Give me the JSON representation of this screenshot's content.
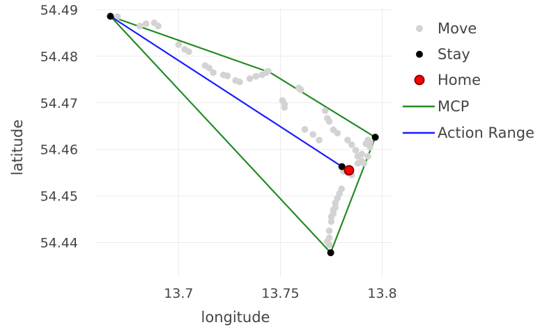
{
  "chart_data": {
    "type": "scatter",
    "xlabel": "longitude",
    "ylabel": "latitude",
    "xlim": [
      13.6595,
      13.8046
    ],
    "ylim": [
      54.4326,
      54.4903
    ],
    "x_ticks": [
      13.7,
      13.75,
      13.8
    ],
    "x_tick_labels": [
      "13.7",
      "13.75",
      "13.8"
    ],
    "y_ticks": [
      54.44,
      54.45,
      54.46,
      54.47,
      54.48,
      54.49
    ],
    "y_tick_labels": [
      "54.44",
      "54.45",
      "54.46",
      "54.47",
      "54.48",
      "54.49"
    ],
    "grid": true,
    "legend_position": "right",
    "colors": {
      "move": "#d3d3d3",
      "stay": "#000000",
      "home_fill": "#ff0000",
      "home_stroke": "#8b0000",
      "mcp": "#228b22",
      "action_range": "#1a1aff"
    },
    "series": [
      {
        "name": "Move",
        "mode": "markers",
        "x": [
          13.67,
          13.681,
          13.684,
          13.688,
          13.69,
          13.7,
          13.703,
          13.705,
          13.713,
          13.715,
          13.717,
          13.722,
          13.724,
          13.728,
          13.73,
          13.735,
          13.738,
          13.741,
          13.743,
          13.744,
          13.751,
          13.752,
          13.752,
          13.759,
          13.76,
          13.762,
          13.766,
          13.769,
          13.772,
          13.773,
          13.774,
          13.776,
          13.778,
          13.783,
          13.785,
          13.787,
          13.788,
          13.79,
          13.791,
          13.793,
          13.794,
          13.794,
          13.793,
          13.792,
          13.79,
          13.788,
          13.785,
          13.783,
          13.781,
          13.78,
          13.779,
          13.778,
          13.777,
          13.777,
          13.776,
          13.776,
          13.775,
          13.775,
          13.774,
          13.774,
          13.773,
          13.774
        ],
        "y": [
          54.4885,
          54.4865,
          54.487,
          54.4872,
          54.4865,
          54.4825,
          54.4815,
          54.481,
          54.478,
          54.4775,
          54.4765,
          54.476,
          54.4758,
          54.4748,
          54.4745,
          54.4752,
          54.4757,
          54.476,
          54.4765,
          54.4768,
          54.4705,
          54.4697,
          54.469,
          54.4732,
          54.4728,
          54.4643,
          54.4632,
          54.462,
          54.4683,
          54.4667,
          54.466,
          54.4642,
          54.4635,
          54.462,
          54.461,
          54.4598,
          54.4585,
          54.4575,
          54.457,
          54.4585,
          54.4605,
          54.4615,
          54.462,
          54.4612,
          54.459,
          54.457,
          54.4545,
          54.455,
          54.4553,
          54.4515,
          54.4505,
          54.4495,
          54.4485,
          54.4475,
          54.447,
          54.4462,
          54.4455,
          54.4445,
          54.4425,
          54.441,
          54.4402,
          54.4395
        ]
      },
      {
        "name": "Stay",
        "mode": "markers",
        "x": [
          13.6665,
          13.7966,
          13.7802,
          13.7747
        ],
        "y": [
          54.4886,
          54.4626,
          54.4563,
          54.4378
        ]
      },
      {
        "name": "Home",
        "mode": "markers",
        "x": [
          13.7837
        ],
        "y": [
          54.4555
        ]
      },
      {
        "name": "MCP",
        "mode": "lines",
        "x": [
          13.6665,
          13.745,
          13.7966,
          13.7747,
          13.6665
        ],
        "y": [
          54.4886,
          54.4765,
          54.4626,
          54.4378,
          54.4886
        ]
      },
      {
        "name": "Action Range",
        "mode": "lines",
        "x": [
          13.6665,
          13.7802,
          13.7837
        ],
        "y": [
          54.4886,
          54.4563,
          54.4555
        ]
      }
    ]
  }
}
